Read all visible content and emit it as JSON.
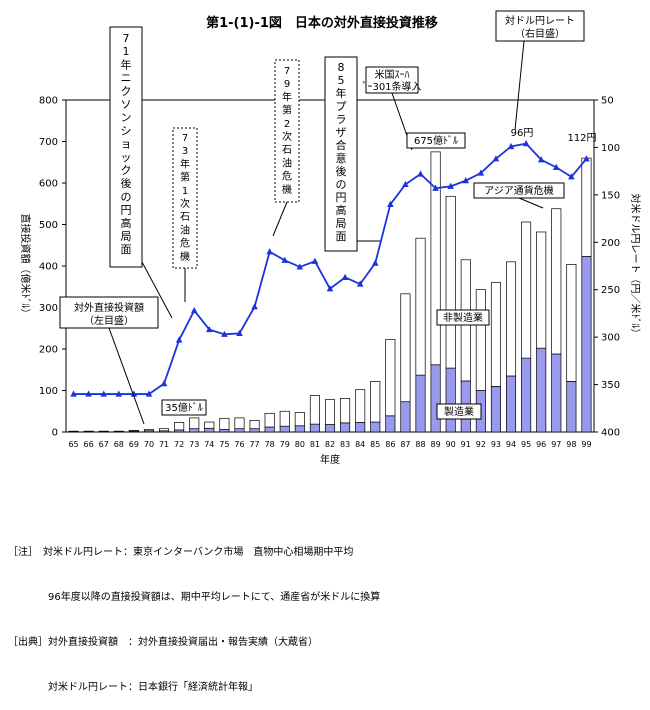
{
  "chart_data": {
    "type": "bar",
    "title": "第1-(1)-1図　日本の対外直接投資推移",
    "xlabel": "年度",
    "ylabel": "直接投資額（億米ﾄﾞﾙ）",
    "y2label": "対米ドル円レート（円／米ﾄﾞﾙ）",
    "ylim": [
      0,
      800
    ],
    "y2lim": [
      400,
      50
    ],
    "yticks": [
      "0",
      "100",
      "200",
      "300",
      "400",
      "500",
      "600",
      "700",
      "800"
    ],
    "y2ticks": [
      "400",
      "350",
      "300",
      "250",
      "200",
      "150",
      "100",
      "50"
    ],
    "categories": [
      "65",
      "66",
      "67",
      "68",
      "69",
      "70",
      "71",
      "72",
      "73",
      "74",
      "75",
      "76",
      "77",
      "78",
      "79",
      "80",
      "81",
      "82",
      "83",
      "84",
      "85",
      "86",
      "87",
      "88",
      "89",
      "90",
      "91",
      "92",
      "93",
      "94",
      "95",
      "96",
      "97",
      "98",
      "99"
    ],
    "series": [
      {
        "name": "製造業",
        "color": "#9999ee",
        "values": [
          1,
          1,
          1,
          1,
          2,
          3,
          3,
          5,
          8,
          9,
          6,
          8,
          8,
          12,
          14,
          15,
          19,
          18,
          22,
          23,
          24,
          39,
          73,
          137,
          162,
          154,
          123,
          100,
          110,
          135,
          178,
          202,
          188,
          122,
          423
        ]
      },
      {
        "name": "非製造業",
        "color": "#ffffff",
        "values": [
          1,
          1,
          1,
          1,
          2,
          3,
          5,
          18,
          26,
          15,
          27,
          26,
          20,
          33,
          36,
          32,
          69,
          60,
          59,
          79,
          98,
          184,
          260,
          330,
          513,
          414,
          292,
          243,
          250,
          275,
          328,
          280,
          350,
          282,
          237
        ]
      },
      {
        "name": "対ドル円レート",
        "color": "#1a33dd",
        "axis": "right",
        "values": [
          360,
          360,
          360,
          360,
          360,
          360,
          349,
          303,
          272,
          292,
          297,
          296,
          268,
          210,
          219,
          226,
          220,
          249,
          237,
          244,
          222,
          160,
          139,
          128,
          143,
          141,
          135,
          127,
          112,
          99,
          96,
          113,
          121,
          131,
          112
        ]
      }
    ],
    "annotations": [
      "71年ニクソンショック後の円高局面",
      "73年第1次石油危機",
      "79年第2次石油危機",
      "85年プラザ合意後の円高局面",
      "米国ｽｰﾊﾟｰ301条導入",
      "対ドル円レート（右目盛）",
      "アジア通貨危機",
      "対外直接投資額（左目盛）",
      "35億ﾄﾞﾙ",
      "675億ﾄﾞﾙ",
      "96円",
      "112円",
      "非製造業",
      "製造業"
    ]
  },
  "notes": [
    "［注］　対米ドル円レート：東京インターバンク市場　直物中心相場期中平均",
    "　　　　96年度以降の直接投資額は、期中平均レートにて、通産省が米ドルに換算",
    "［出典］対外直接投資額　：対外直接投資届出・報告実績（大蔵省）",
    "　　　　対米ドル円レート：日本銀行「経済統計年報」"
  ]
}
